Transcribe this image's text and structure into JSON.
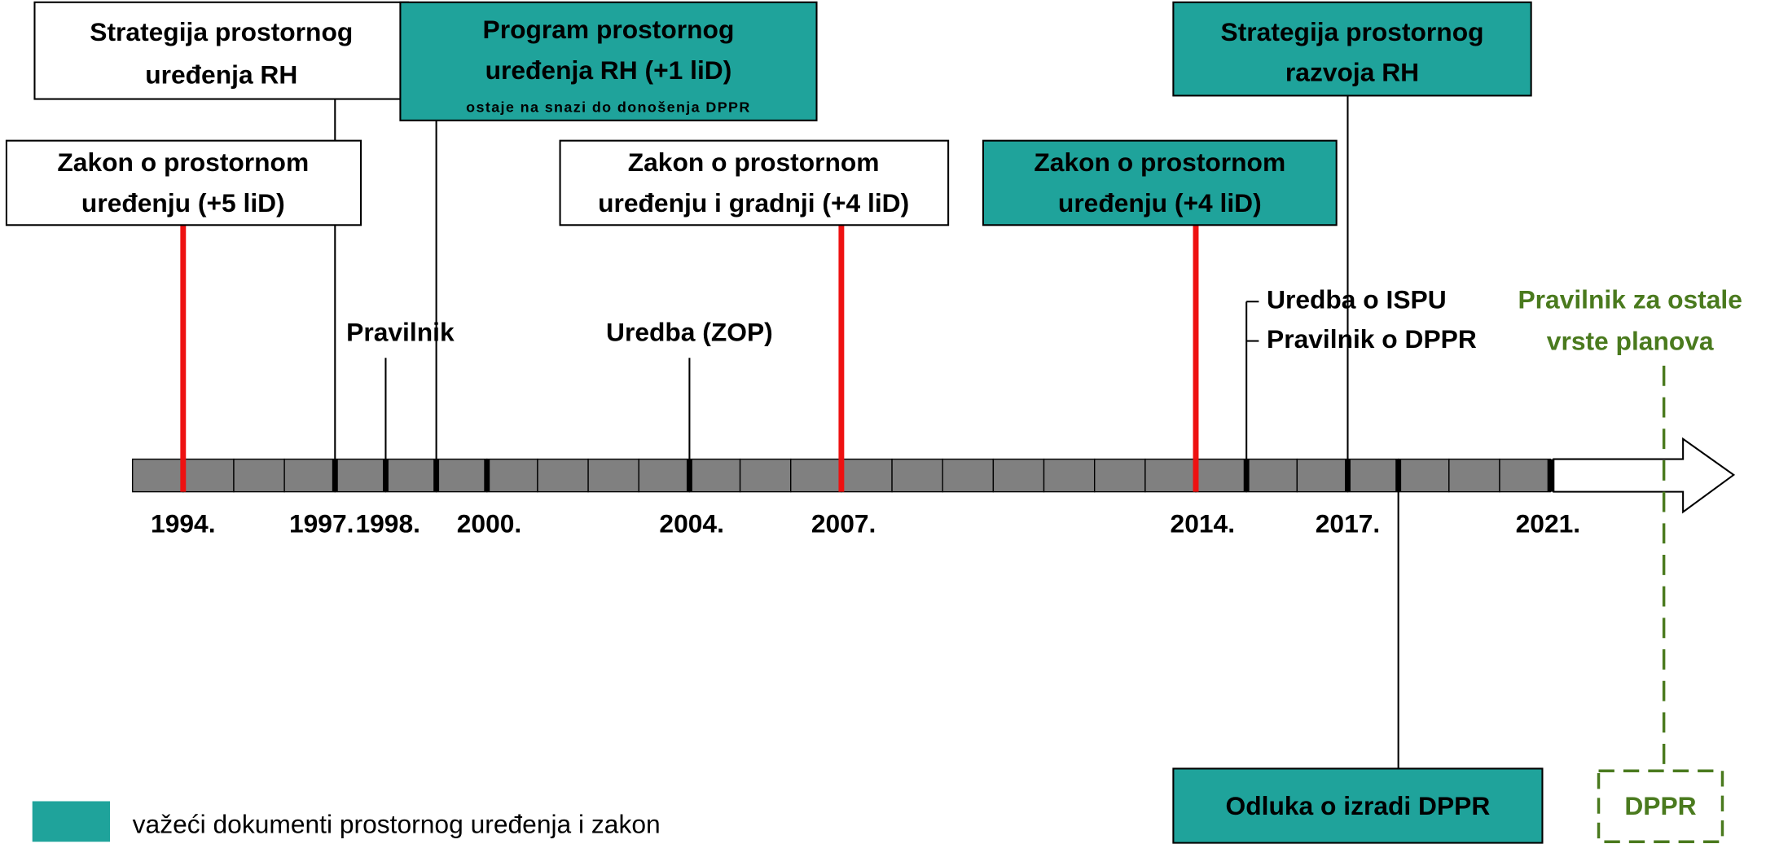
{
  "boxes": [
    {
      "lines": [
        "Strategija prostornog",
        "uređenja RH"
      ]
    },
    {
      "lines": [
        "Program prostornog",
        "uređenja RH (+1 liD)"
      ],
      "note": "ostaje na snazi do donošenja DPPR"
    },
    {
      "lines": [
        "Zakon o prostornom",
        "uređenju (+5 liD)"
      ]
    },
    {
      "lines": [
        "Zakon o prostornom",
        "uređenju i gradnji (+4 liD)"
      ]
    },
    {
      "lines": [
        "Zakon o prostornom",
        "uređenju (+4 liD)"
      ]
    },
    {
      "lines": [
        "Strategija prostornog",
        "razvoja RH"
      ]
    },
    {
      "lines": [
        "Odluka o izradi DPPR"
      ]
    },
    {
      "lines": [
        "DPPR"
      ]
    }
  ],
  "labels": [
    "Pravilnik",
    "Uredba (ZOP)",
    "Uredba o ISPU",
    "Pravilnik o DPPR"
  ],
  "future_label": [
    "Pravilnik za ostale",
    "vrste planova"
  ],
  "years": [
    "1994.",
    "1997.",
    "1998.",
    "2000.",
    "2004.",
    "2007.",
    "2014.",
    "2017.",
    "2021."
  ],
  "legend": "važeći dokumenti prostornog uređenja i zakon"
}
